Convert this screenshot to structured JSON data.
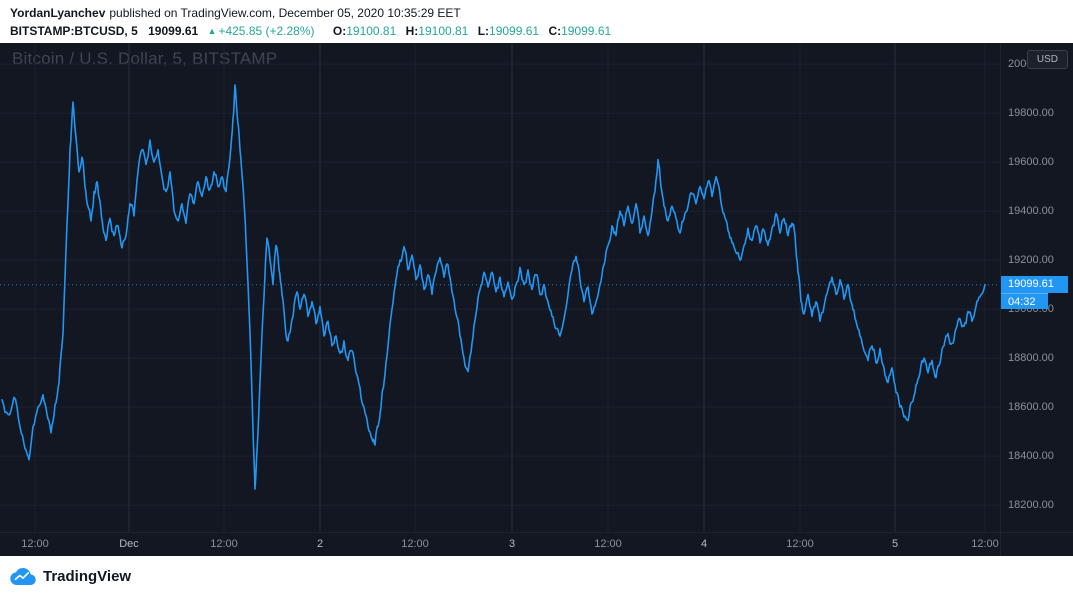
{
  "header": {
    "author": "YordanLyanchev",
    "published": "published on TradingView.com, December 05, 2020 10:35:29 EET"
  },
  "quote": {
    "symbol": "BITSTAMP:BTCUSD, 5",
    "last_price": "19099.61",
    "change_arrow": "▲",
    "change_text": "+425.85 (+2.28%)",
    "o_label": "O:",
    "o_value": "19100.81",
    "h_label": "H:",
    "h_value": "19100.81",
    "l_label": "L:",
    "l_value": "19099.61",
    "c_label": "C:",
    "c_value": "19099.61"
  },
  "chart": {
    "watermark": "Bitcoin / U.S. Dollar, 5, BITSTAMP",
    "currency_button": "USD",
    "price_badge": "19099.61",
    "countdown_badge": "04:32",
    "colors": {
      "bg": "#131722",
      "line": "#2196f3",
      "grid": "#1d2230",
      "grid_major": "#262c3b",
      "axis_text": "#8b9099",
      "badge": "#2196f3",
      "up": "#26a69a"
    }
  },
  "footer": {
    "brand": "TradingView"
  },
  "chart_data": {
    "type": "line",
    "title": "Bitcoin / U.S. Dollar, 5, BITSTAMP",
    "symbol": "BITSTAMP:BTCUSD",
    "interval": "5",
    "current_price": 19099.61,
    "ylim": [
      18090,
      20086
    ],
    "x_range": [
      0,
      1000
    ],
    "grid": true,
    "price_ticks": [
      {
        "value": 20000,
        "label": "20000.00"
      },
      {
        "value": 19800,
        "label": "19800.00"
      },
      {
        "value": 19600,
        "label": "19600.00"
      },
      {
        "value": 19400,
        "label": "19400.00"
      },
      {
        "value": 19200,
        "label": "19200.00"
      },
      {
        "value": 19000,
        "label": "19000.00"
      },
      {
        "value": 18800,
        "label": "18800.00"
      },
      {
        "value": 18600,
        "label": "18600.00"
      },
      {
        "value": 18400,
        "label": "18400.00"
      },
      {
        "value": 18200,
        "label": "18200.00"
      }
    ],
    "time_ticks": [
      {
        "x": 35,
        "label": "12:00",
        "major": false
      },
      {
        "x": 129,
        "label": "Dec",
        "major": true
      },
      {
        "x": 224,
        "label": "12:00",
        "major": false
      },
      {
        "x": 320,
        "label": "2",
        "major": true
      },
      {
        "x": 415,
        "label": "12:00",
        "major": false
      },
      {
        "x": 512,
        "label": "3",
        "major": true
      },
      {
        "x": 608,
        "label": "12:00",
        "major": false
      },
      {
        "x": 704,
        "label": "4",
        "major": true
      },
      {
        "x": 800,
        "label": "12:00",
        "major": false
      },
      {
        "x": 895,
        "label": "5",
        "major": true
      },
      {
        "x": 985,
        "label": "12:00",
        "major": false
      }
    ],
    "noise": {
      "seed": 7,
      "amplitude": 22,
      "iterations": 2
    },
    "points": [
      [
        2,
        18630
      ],
      [
        8,
        18570
      ],
      [
        14,
        18640
      ],
      [
        20,
        18520
      ],
      [
        25,
        18430
      ],
      [
        29,
        18385
      ],
      [
        33,
        18520
      ],
      [
        38,
        18600
      ],
      [
        43,
        18650
      ],
      [
        47,
        18570
      ],
      [
        51,
        18495
      ],
      [
        55,
        18610
      ],
      [
        59,
        18700
      ],
      [
        63,
        18900
      ],
      [
        67,
        19350
      ],
      [
        70,
        19650
      ],
      [
        73,
        19845
      ],
      [
        76,
        19700
      ],
      [
        79,
        19560
      ],
      [
        82,
        19620
      ],
      [
        85,
        19500
      ],
      [
        88,
        19420
      ],
      [
        91,
        19360
      ],
      [
        94,
        19480
      ],
      [
        97,
        19520
      ],
      [
        100,
        19440
      ],
      [
        103,
        19330
      ],
      [
        106,
        19280
      ],
      [
        110,
        19370
      ],
      [
        114,
        19300
      ],
      [
        118,
        19340
      ],
      [
        122,
        19250
      ],
      [
        126,
        19300
      ],
      [
        130,
        19430
      ],
      [
        134,
        19380
      ],
      [
        138,
        19560
      ],
      [
        142,
        19650
      ],
      [
        146,
        19590
      ],
      [
        150,
        19690
      ],
      [
        154,
        19600
      ],
      [
        158,
        19650
      ],
      [
        162,
        19540
      ],
      [
        166,
        19480
      ],
      [
        170,
        19560
      ],
      [
        174,
        19400
      ],
      [
        178,
        19360
      ],
      [
        182,
        19430
      ],
      [
        186,
        19350
      ],
      [
        190,
        19470
      ],
      [
        194,
        19430
      ],
      [
        198,
        19520
      ],
      [
        202,
        19460
      ],
      [
        206,
        19540
      ],
      [
        210,
        19490
      ],
      [
        214,
        19560
      ],
      [
        218,
        19500
      ],
      [
        222,
        19540
      ],
      [
        226,
        19480
      ],
      [
        230,
        19620
      ],
      [
        233,
        19780
      ],
      [
        235,
        19915
      ],
      [
        237,
        19800
      ],
      [
        240,
        19650
      ],
      [
        243,
        19500
      ],
      [
        246,
        19280
      ],
      [
        249,
        19000
      ],
      [
        252,
        18650
      ],
      [
        255,
        18265
      ],
      [
        258,
        18500
      ],
      [
        261,
        18800
      ],
      [
        264,
        19050
      ],
      [
        267,
        19290
      ],
      [
        270,
        19200
      ],
      [
        273,
        19100
      ],
      [
        276,
        19260
      ],
      [
        279,
        19160
      ],
      [
        282,
        19060
      ],
      [
        285,
        18940
      ],
      [
        288,
        18870
      ],
      [
        291,
        18930
      ],
      [
        294,
        19010
      ],
      [
        297,
        19070
      ],
      [
        300,
        19000
      ],
      [
        304,
        19060
      ],
      [
        308,
        18970
      ],
      [
        312,
        19030
      ],
      [
        316,
        18940
      ],
      [
        320,
        19010
      ],
      [
        324,
        18890
      ],
      [
        328,
        18950
      ],
      [
        332,
        18850
      ],
      [
        336,
        18890
      ],
      [
        340,
        18820
      ],
      [
        344,
        18870
      ],
      [
        348,
        18790
      ],
      [
        352,
        18830
      ],
      [
        356,
        18740
      ],
      [
        360,
        18680
      ],
      [
        364,
        18600
      ],
      [
        368,
        18520
      ],
      [
        372,
        18470
      ],
      [
        375,
        18445
      ],
      [
        378,
        18520
      ],
      [
        381,
        18600
      ],
      [
        384,
        18700
      ],
      [
        388,
        18850
      ],
      [
        392,
        19000
      ],
      [
        396,
        19120
      ],
      [
        400,
        19200
      ],
      [
        404,
        19255
      ],
      [
        408,
        19160
      ],
      [
        412,
        19220
      ],
      [
        416,
        19120
      ],
      [
        420,
        19180
      ],
      [
        424,
        19080
      ],
      [
        428,
        19140
      ],
      [
        432,
        19060
      ],
      [
        436,
        19150
      ],
      [
        440,
        19210
      ],
      [
        444,
        19130
      ],
      [
        448,
        19180
      ],
      [
        452,
        19070
      ],
      [
        456,
        18980
      ],
      [
        460,
        18890
      ],
      [
        464,
        18800
      ],
      [
        468,
        18745
      ],
      [
        472,
        18860
      ],
      [
        476,
        18980
      ],
      [
        480,
        19080
      ],
      [
        484,
        19150
      ],
      [
        488,
        19090
      ],
      [
        492,
        19150
      ],
      [
        496,
        19070
      ],
      [
        500,
        19130
      ],
      [
        504,
        19050
      ],
      [
        508,
        19110
      ],
      [
        512,
        19040
      ],
      [
        516,
        19100
      ],
      [
        520,
        19170
      ],
      [
        524,
        19100
      ],
      [
        528,
        19160
      ],
      [
        532,
        19080
      ],
      [
        536,
        19140
      ],
      [
        540,
        19060
      ],
      [
        544,
        19100
      ],
      [
        548,
        19030
      ],
      [
        552,
        18970
      ],
      [
        556,
        18920
      ],
      [
        560,
        18890
      ],
      [
        564,
        18960
      ],
      [
        568,
        19060
      ],
      [
        572,
        19160
      ],
      [
        576,
        19215
      ],
      [
        580,
        19120
      ],
      [
        584,
        19030
      ],
      [
        588,
        19090
      ],
      [
        592,
        18980
      ],
      [
        596,
        19030
      ],
      [
        600,
        19100
      ],
      [
        604,
        19180
      ],
      [
        608,
        19260
      ],
      [
        612,
        19340
      ],
      [
        616,
        19300
      ],
      [
        620,
        19400
      ],
      [
        624,
        19340
      ],
      [
        628,
        19420
      ],
      [
        632,
        19350
      ],
      [
        636,
        19430
      ],
      [
        640,
        19310
      ],
      [
        644,
        19380
      ],
      [
        648,
        19300
      ],
      [
        652,
        19400
      ],
      [
        655,
        19480
      ],
      [
        658,
        19610
      ],
      [
        661,
        19500
      ],
      [
        664,
        19420
      ],
      [
        668,
        19360
      ],
      [
        672,
        19420
      ],
      [
        676,
        19370
      ],
      [
        680,
        19310
      ],
      [
        684,
        19370
      ],
      [
        688,
        19420
      ],
      [
        692,
        19470
      ],
      [
        696,
        19430
      ],
      [
        700,
        19500
      ],
      [
        704,
        19450
      ],
      [
        708,
        19520
      ],
      [
        712,
        19460
      ],
      [
        716,
        19540
      ],
      [
        720,
        19470
      ],
      [
        724,
        19390
      ],
      [
        728,
        19320
      ],
      [
        732,
        19270
      ],
      [
        736,
        19230
      ],
      [
        740,
        19200
      ],
      [
        744,
        19260
      ],
      [
        748,
        19330
      ],
      [
        752,
        19280
      ],
      [
        756,
        19340
      ],
      [
        760,
        19270
      ],
      [
        764,
        19320
      ],
      [
        768,
        19260
      ],
      [
        772,
        19330
      ],
      [
        776,
        19390
      ],
      [
        780,
        19310
      ],
      [
        784,
        19370
      ],
      [
        788,
        19300
      ],
      [
        792,
        19350
      ],
      [
        795,
        19300
      ],
      [
        798,
        19150
      ],
      [
        801,
        19030
      ],
      [
        804,
        18980
      ],
      [
        808,
        19060
      ],
      [
        812,
        18970
      ],
      [
        816,
        19030
      ],
      [
        820,
        18950
      ],
      [
        824,
        19010
      ],
      [
        828,
        19080
      ],
      [
        832,
        19130
      ],
      [
        836,
        19060
      ],
      [
        840,
        19120
      ],
      [
        844,
        19040
      ],
      [
        848,
        19100
      ],
      [
        852,
        19020
      ],
      [
        856,
        18950
      ],
      [
        860,
        18890
      ],
      [
        864,
        18830
      ],
      [
        868,
        18790
      ],
      [
        872,
        18850
      ],
      [
        876,
        18780
      ],
      [
        880,
        18840
      ],
      [
        884,
        18760
      ],
      [
        888,
        18700
      ],
      [
        892,
        18760
      ],
      [
        896,
        18660
      ],
      [
        900,
        18600
      ],
      [
        904,
        18560
      ],
      [
        908,
        18545
      ],
      [
        912,
        18620
      ],
      [
        916,
        18690
      ],
      [
        920,
        18740
      ],
      [
        924,
        18800
      ],
      [
        928,
        18740
      ],
      [
        932,
        18790
      ],
      [
        936,
        18720
      ],
      [
        940,
        18780
      ],
      [
        944,
        18850
      ],
      [
        948,
        18900
      ],
      [
        952,
        18860
      ],
      [
        956,
        18920
      ],
      [
        960,
        18960
      ],
      [
        964,
        18930
      ],
      [
        968,
        18990
      ],
      [
        972,
        18950
      ],
      [
        976,
        19010
      ],
      [
        980,
        19050
      ],
      [
        985,
        19099.61
      ]
    ]
  }
}
